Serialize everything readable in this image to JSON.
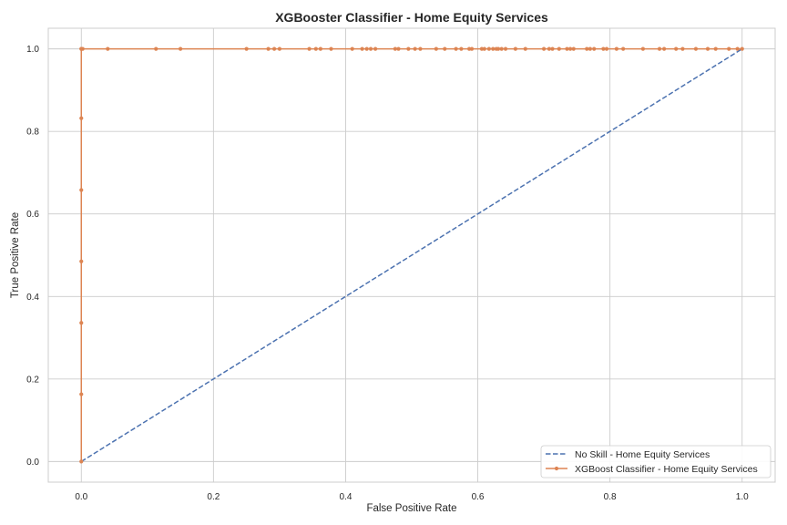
{
  "chart_data": {
    "type": "line",
    "title": "XGBooster Classifier - Home Equity Services",
    "xlabel": "False Positive Rate",
    "ylabel": "True Positive Rate",
    "xlim": [
      -0.05,
      1.05
    ],
    "ylim": [
      -0.05,
      1.05
    ],
    "xticks": [
      "0.0",
      "0.2",
      "0.4",
      "0.6",
      "0.8",
      "1.0"
    ],
    "yticks": [
      "0.0",
      "0.2",
      "0.4",
      "0.6",
      "0.8",
      "1.0"
    ],
    "grid": true,
    "legend_position": "bottom-right",
    "series": [
      {
        "name": "No Skill - Home Equity Services",
        "style": "dashed",
        "markers": false,
        "color": "#4c72b0",
        "x": [
          0,
          1
        ],
        "y": [
          0,
          1
        ]
      },
      {
        "name": "XGBoost Classifier - Home Equity Services",
        "style": "solid",
        "markers": true,
        "color": "#dd8452",
        "x": [
          0,
          0,
          0,
          0,
          0,
          0,
          0,
          0,
          0.002,
          0.04,
          0.113,
          0.15,
          0.25,
          0.283,
          0.292,
          0.3,
          0.345,
          0.355,
          0.362,
          0.378,
          0.41,
          0.425,
          0.432,
          0.438,
          0.445,
          0.475,
          0.48,
          0.495,
          0.505,
          0.513,
          0.537,
          0.55,
          0.567,
          0.575,
          0.587,
          0.591,
          0.606,
          0.61,
          0.617,
          0.623,
          0.628,
          0.631,
          0.636,
          0.642,
          0.657,
          0.672,
          0.7,
          0.708,
          0.713,
          0.723,
          0.735,
          0.74,
          0.745,
          0.765,
          0.77,
          0.776,
          0.79,
          0.795,
          0.81,
          0.82,
          0.85,
          0.875,
          0.882,
          0.9,
          0.91,
          0.93,
          0.948,
          0.96,
          0.98,
          0.993,
          1.0
        ],
        "y": [
          0,
          0.163,
          0.336,
          0.485,
          0.658,
          0.832,
          1,
          1,
          1,
          1,
          1,
          1,
          1,
          1,
          1,
          1,
          1,
          1,
          1,
          1,
          1,
          1,
          1,
          1,
          1,
          1,
          1,
          1,
          1,
          1,
          1,
          1,
          1,
          1,
          1,
          1,
          1,
          1,
          1,
          1,
          1,
          1,
          1,
          1,
          1,
          1,
          1,
          1,
          1,
          1,
          1,
          1,
          1,
          1,
          1,
          1,
          1,
          1,
          1,
          1,
          1,
          1,
          1,
          1,
          1,
          1,
          1,
          1,
          1,
          1,
          1
        ]
      }
    ]
  }
}
